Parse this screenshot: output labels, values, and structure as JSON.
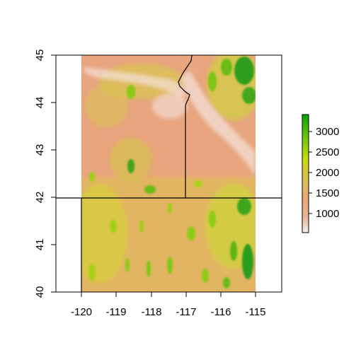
{
  "map": {
    "x_ticks": [
      "-120",
      "-119",
      "-118",
      "-117",
      "-116",
      "-115"
    ],
    "y_ticks": [
      "40",
      "41",
      "42",
      "43",
      "44",
      "45"
    ],
    "x_range": [
      -120.9,
      -114.4
    ],
    "y_range": [
      40,
      45
    ],
    "raster_extent": {
      "lon": [
        -120,
        -115
      ],
      "lat": [
        40,
        45
      ]
    },
    "state_border_lat": 42,
    "nevada_west_lon": -120,
    "idaho_west_border": "Snake River (north) then -117.03 meridian"
  },
  "legend": {
    "labels": [
      "3000",
      "2500",
      "2000",
      "1500",
      "1000"
    ],
    "values": [
      3000,
      2500,
      2000,
      1500,
      1000
    ],
    "min": 490,
    "max": 3350,
    "colors": [
      "#f2f2f2",
      "#eab89c",
      "#e8a777",
      "#d7c63c",
      "#c6dc0c",
      "#8bcf12",
      "#2ea30f",
      "#00a600"
    ]
  },
  "colors": {
    "low_basin": "#e8a57e",
    "mid_highland": "#d9cf3c",
    "mountains": "#58b816",
    "high_peaks": "#1e9a1e",
    "river_valley": "#f2dcd3",
    "border": "#000000"
  }
}
